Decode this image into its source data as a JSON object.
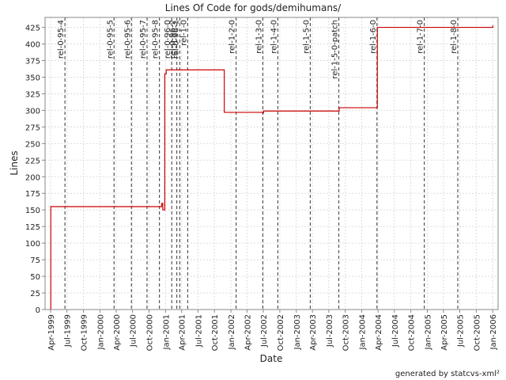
{
  "chart_data": {
    "type": "line",
    "title": "Lines Of Code for gods/demihumans/",
    "xlabel": "Date",
    "ylabel": "Lines",
    "ylim": [
      0,
      440
    ],
    "xlim": [
      "1999-03-01",
      "2006-01-31"
    ],
    "yticks": [
      0,
      25,
      50,
      75,
      100,
      125,
      150,
      175,
      200,
      225,
      250,
      275,
      300,
      325,
      350,
      375,
      400,
      425
    ],
    "xticks": [
      {
        "date": "1999-04-01",
        "label": "Apr-1999"
      },
      {
        "date": "1999-07-01",
        "label": "Jul-1999"
      },
      {
        "date": "1999-10-01",
        "label": "Oct-1999"
      },
      {
        "date": "2000-01-01",
        "label": "Jan-2000"
      },
      {
        "date": "2000-04-01",
        "label": "Apr-2000"
      },
      {
        "date": "2000-07-01",
        "label": "Jul-2000"
      },
      {
        "date": "2000-10-01",
        "label": "Oct-2000"
      },
      {
        "date": "2001-01-01",
        "label": "Jan-2001"
      },
      {
        "date": "2001-04-01",
        "label": "Apr-2001"
      },
      {
        "date": "2001-07-01",
        "label": "Jul-2001"
      },
      {
        "date": "2001-10-01",
        "label": "Oct-2001"
      },
      {
        "date": "2002-01-01",
        "label": "Jan-2002"
      },
      {
        "date": "2002-04-01",
        "label": "Apr-2002"
      },
      {
        "date": "2002-07-01",
        "label": "Jul-2002"
      },
      {
        "date": "2002-10-01",
        "label": "Oct-2002"
      },
      {
        "date": "2003-01-01",
        "label": "Jan-2003"
      },
      {
        "date": "2003-04-01",
        "label": "Apr-2003"
      },
      {
        "date": "2003-07-01",
        "label": "Jul-2003"
      },
      {
        "date": "2003-10-01",
        "label": "Oct-2003"
      },
      {
        "date": "2004-01-01",
        "label": "Jan-2004"
      },
      {
        "date": "2004-04-01",
        "label": "Apr-2004"
      },
      {
        "date": "2004-07-01",
        "label": "Jul-2004"
      },
      {
        "date": "2004-10-01",
        "label": "Oct-2004"
      },
      {
        "date": "2005-01-01",
        "label": "Jan-2005"
      },
      {
        "date": "2005-04-01",
        "label": "Apr-2005"
      },
      {
        "date": "2005-07-01",
        "label": "Jul-2005"
      },
      {
        "date": "2005-10-01",
        "label": "Oct-2005"
      },
      {
        "date": "2006-01-01",
        "label": "Jan-2006"
      }
    ],
    "grid": true,
    "series": [
      {
        "color": "#cc0000",
        "step": true,
        "points": [
          {
            "x": "1999-04-01",
            "y": 0
          },
          {
            "x": "1999-04-02",
            "y": 155
          },
          {
            "x": "2000-12-10",
            "y": 155
          },
          {
            "x": "2000-12-11",
            "y": 160
          },
          {
            "x": "2000-12-17",
            "y": 150
          },
          {
            "x": "2000-12-28",
            "y": 355
          },
          {
            "x": "2001-01-05",
            "y": 361
          },
          {
            "x": "2001-11-20",
            "y": 361
          },
          {
            "x": "2001-11-25",
            "y": 297
          },
          {
            "x": "2002-06-28",
            "y": 296
          },
          {
            "x": "2002-07-02",
            "y": 299
          },
          {
            "x": "2003-08-20",
            "y": 299
          },
          {
            "x": "2003-08-28",
            "y": 304
          },
          {
            "x": "2004-03-22",
            "y": 304
          },
          {
            "x": "2004-03-28",
            "y": 425
          },
          {
            "x": "2006-01-01",
            "y": 425
          },
          {
            "x": "2006-01-02",
            "y": 428
          }
        ]
      }
    ],
    "markers": [
      {
        "label": "rel-0-95-4",
        "date": "1999-06-20"
      },
      {
        "label": "rel-0-95-5",
        "date": "2000-03-20"
      },
      {
        "label": "rel-0-95-6",
        "date": "2000-06-25"
      },
      {
        "label": "rel-0-95-7",
        "date": "2000-09-20"
      },
      {
        "label": "rel-0-95-8",
        "date": "2000-11-28"
      },
      {
        "label": "rel-0-96-0",
        "date": "2001-02-05"
      },
      {
        "label": "rel-0-96-2",
        "date": "2001-03-05"
      },
      {
        "label": "rel-0-96-1",
        "date": "2001-03-22"
      },
      {
        "label": "rel-1-0",
        "date": "2001-05-05"
      },
      {
        "label": "rel-1-2-0",
        "date": "2002-01-30"
      },
      {
        "label": "rel-1-3-0",
        "date": "2002-06-28"
      },
      {
        "label": "rel-1-4-0",
        "date": "2002-09-20"
      },
      {
        "label": "rel-1-5-0",
        "date": "2003-03-20"
      },
      {
        "label": "rel-1-5-0-patch",
        "date": "2003-08-26"
      },
      {
        "label": "rel-1-6-0",
        "date": "2004-03-26"
      },
      {
        "label": "rel-1-7-0",
        "date": "2004-12-15"
      },
      {
        "label": "rel-1-8-0",
        "date": "2005-06-20"
      }
    ]
  },
  "footer": {
    "credit": "generated by statcvs-xml²"
  }
}
